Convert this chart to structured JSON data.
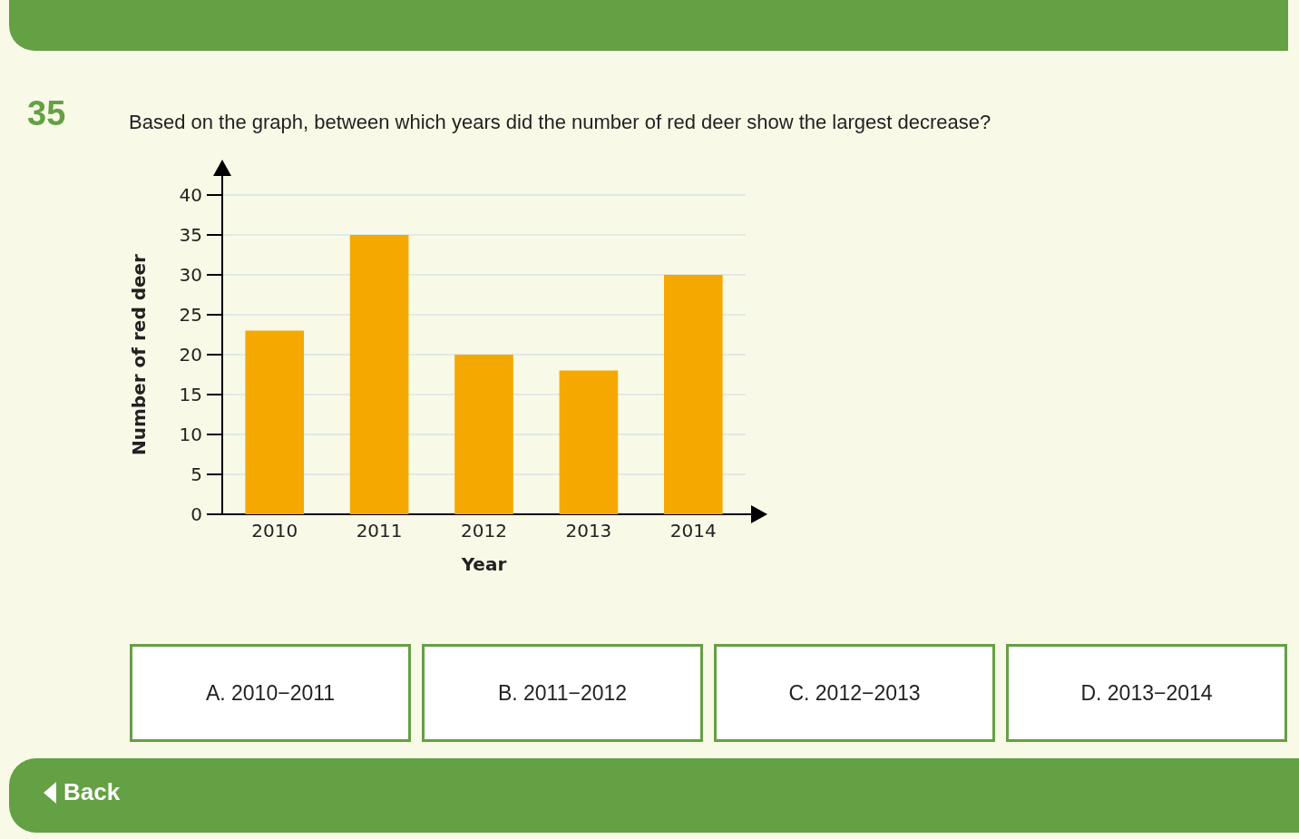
{
  "chart_data": {
    "type": "bar",
    "title": "Based on the graph, between which years did the number of red deer show the largest decrease?",
    "annotations": [
      "35",
      "A. 2010−2011",
      "B. 2011−2012",
      "C. 2012−2013",
      "D. 2013−2014",
      "Back"
    ],
    "xlabel": "Year",
    "ylabel": "Number of red deer",
    "categories": [
      "2010",
      "2011",
      "2012",
      "2013",
      "2014"
    ],
    "values": [
      23,
      35,
      20,
      18,
      30
    ],
    "color": "#f5a800",
    "ylim": [
      0,
      40
    ],
    "yticks": [
      0,
      5,
      10,
      15,
      20,
      25,
      30,
      35,
      40
    ],
    "grid": "y"
  }
}
